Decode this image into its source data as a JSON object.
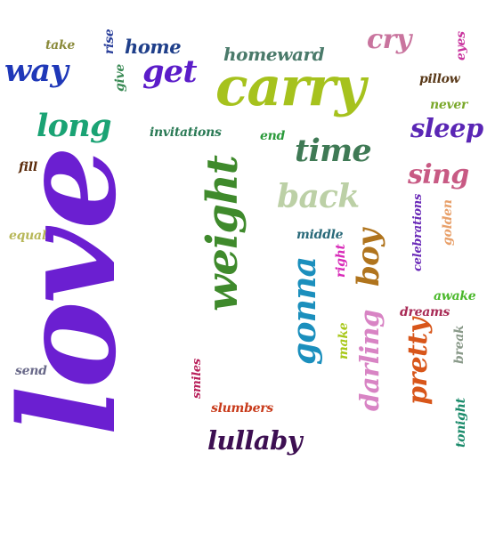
{
  "word_cloud": {
    "words": [
      {
        "text": "love",
        "color": "#6b1fd1",
        "orientation": "vertical"
      },
      {
        "text": "carry",
        "color": "#a6c21d",
        "orientation": "horizontal"
      },
      {
        "text": "weight",
        "color": "#3f8a2c",
        "orientation": "vertical"
      },
      {
        "text": "long",
        "color": "#1aa374",
        "orientation": "horizontal"
      },
      {
        "text": "way",
        "color": "#1f38b8",
        "orientation": "horizontal"
      },
      {
        "text": "get",
        "color": "#5b1cc9",
        "orientation": "horizontal"
      },
      {
        "text": "time",
        "color": "#3f7a55",
        "orientation": "horizontal"
      },
      {
        "text": "back",
        "color": "#bcd0a6",
        "orientation": "horizontal"
      },
      {
        "text": "gonna",
        "color": "#1b8fbd",
        "orientation": "vertical"
      },
      {
        "text": "sleep",
        "color": "#5a26b5",
        "orientation": "horizontal"
      },
      {
        "text": "lullaby",
        "color": "#3d0f52",
        "orientation": "horizontal"
      },
      {
        "text": "sing",
        "color": "#c85a84",
        "orientation": "horizontal"
      },
      {
        "text": "cry",
        "color": "#c9749e",
        "orientation": "horizontal"
      },
      {
        "text": "homeward",
        "color": "#4a7a6a",
        "orientation": "horizontal"
      },
      {
        "text": "home",
        "color": "#1f3f8a",
        "orientation": "horizontal"
      },
      {
        "text": "boy",
        "color": "#b0741d",
        "orientation": "vertical"
      },
      {
        "text": "darling",
        "color": "#d884c4",
        "orientation": "vertical"
      },
      {
        "text": "pretty",
        "color": "#d8561a",
        "orientation": "vertical"
      },
      {
        "text": "take",
        "color": "#8a8a3a",
        "orientation": "horizontal"
      },
      {
        "text": "rise",
        "color": "#2a3f9a",
        "orientation": "vertical"
      },
      {
        "text": "give",
        "color": "#3a8a55",
        "orientation": "vertical"
      },
      {
        "text": "eyes",
        "color": "#c9349e",
        "orientation": "vertical"
      },
      {
        "text": "pillow",
        "color": "#5a3a1a",
        "orientation": "horizontal"
      },
      {
        "text": "never",
        "color": "#7aa82a",
        "orientation": "horizontal"
      },
      {
        "text": "invitations",
        "color": "#2a7a55",
        "orientation": "horizontal"
      },
      {
        "text": "end",
        "color": "#2a9a3a",
        "orientation": "horizontal"
      },
      {
        "text": "fill",
        "color": "#5a2a0a",
        "orientation": "horizontal"
      },
      {
        "text": "equal",
        "color": "#b8b85a",
        "orientation": "horizontal"
      },
      {
        "text": "middle",
        "color": "#2a6a7a",
        "orientation": "horizontal"
      },
      {
        "text": "right",
        "color": "#d82ab8",
        "orientation": "vertical"
      },
      {
        "text": "celebrations",
        "color": "#6a2ab8",
        "orientation": "vertical"
      },
      {
        "text": "golden",
        "color": "#e8a06a",
        "orientation": "vertical"
      },
      {
        "text": "awake",
        "color": "#4ab82a",
        "orientation": "horizontal"
      },
      {
        "text": "dreams",
        "color": "#a82a55",
        "orientation": "horizontal"
      },
      {
        "text": "make",
        "color": "#a8c81a",
        "orientation": "vertical"
      },
      {
        "text": "break",
        "color": "#8a9a8a",
        "orientation": "vertical"
      },
      {
        "text": "send",
        "color": "#6a6a8a",
        "orientation": "horizontal"
      },
      {
        "text": "smiles",
        "color": "#b8205a",
        "orientation": "vertical"
      },
      {
        "text": "slumbers",
        "color": "#c83a1a",
        "orientation": "horizontal"
      },
      {
        "text": "tonight",
        "color": "#1a8a6a",
        "orientation": "vertical"
      }
    ]
  }
}
